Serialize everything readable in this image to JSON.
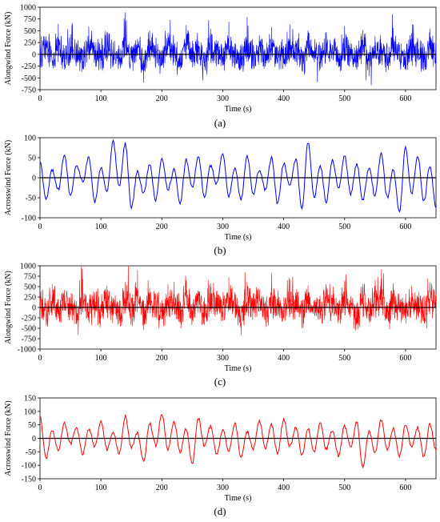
{
  "chart_data": [
    {
      "type": "line",
      "panel_label": "(a)",
      "xlabel": "Time (s)",
      "ylabel": "Alongwind Force (kN)",
      "xlim": [
        0,
        650
      ],
      "ylim": [
        -750,
        1000
      ],
      "xticks": [
        0,
        100,
        200,
        300,
        400,
        500,
        600
      ],
      "yticks": [
        -750,
        -500,
        -250,
        0,
        250,
        500,
        750,
        1000
      ],
      "grid": false,
      "color": "#0000ff",
      "series": [
        {
          "x": [
            0,
            10,
            20,
            30,
            40,
            50,
            60,
            70,
            80,
            90,
            100,
            110,
            120,
            130,
            140,
            150,
            160,
            170,
            180,
            190,
            200,
            210,
            220,
            230,
            240,
            250,
            260,
            270,
            280,
            290,
            300,
            310,
            320,
            330,
            340,
            350,
            360,
            370,
            380,
            390,
            400,
            410,
            420,
            430,
            440,
            450,
            460,
            470,
            480,
            490,
            500,
            510,
            520,
            530,
            540,
            550,
            560,
            570,
            580,
            590,
            600,
            610,
            620,
            630,
            640,
            650
          ],
          "values": [
            120,
            380,
            -180,
            650,
            -250,
            420,
            140,
            -310,
            590,
            80,
            -150,
            480,
            260,
            -200,
            700,
            -90,
            330,
            -600,
            510,
            110,
            -220,
            460,
            190,
            -330,
            620,
            -40,
            280,
            -260,
            540,
            150,
            -170,
            690,
            230,
            -300,
            790,
            -60,
            410,
            -240,
            580,
            120,
            -190,
            640,
            260,
            -350,
            510,
            70,
            -210,
            470,
            200,
            -280,
            600,
            90,
            -330,
            520,
            -460,
            380,
            160,
            -240,
            560,
            40,
            -190,
            450,
            280,
            -350,
            540,
            100
          ]
        }
      ]
    },
    {
      "type": "line",
      "panel_label": "(b)",
      "xlabel": "Time (s)",
      "ylabel": "Acrosswind Force (kN)",
      "xlim": [
        0,
        650
      ],
      "ylim": [
        -100,
        100
      ],
      "xticks": [
        0,
        100,
        200,
        300,
        400,
        500,
        600
      ],
      "yticks": [
        -100,
        -50,
        0,
        50,
        100
      ],
      "grid": false,
      "color": "#0000ff",
      "series": [
        {
          "x": [
            0,
            10,
            20,
            30,
            40,
            50,
            60,
            70,
            80,
            90,
            100,
            110,
            120,
            130,
            140,
            150,
            160,
            170,
            180,
            190,
            200,
            210,
            220,
            230,
            240,
            250,
            260,
            270,
            280,
            290,
            300,
            310,
            320,
            330,
            340,
            350,
            360,
            370,
            380,
            390,
            400,
            410,
            420,
            430,
            440,
            450,
            460,
            470,
            480,
            490,
            500,
            510,
            520,
            530,
            540,
            550,
            560,
            570,
            580,
            590,
            600,
            610,
            620,
            630,
            640,
            650
          ],
          "values": [
            40,
            -55,
            20,
            -30,
            55,
            -45,
            30,
            -10,
            50,
            -60,
            25,
            -35,
            90,
            -20,
            85,
            -75,
            15,
            -40,
            35,
            -55,
            50,
            -30,
            20,
            -65,
            45,
            -25,
            55,
            -50,
            30,
            -15,
            60,
            -45,
            25,
            -55,
            55,
            -40,
            20,
            -30,
            50,
            -65,
            35,
            -20,
            45,
            -80,
            88,
            -50,
            30,
            -60,
            45,
            -25,
            55,
            -40,
            35,
            -55,
            25,
            -45,
            60,
            -50,
            20,
            -85,
            75,
            -40,
            55,
            -60,
            30,
            -75
          ]
        }
      ]
    },
    {
      "type": "line",
      "panel_label": "(c)",
      "xlabel": "Time (s)",
      "ylabel": "Alongwind Force (kN)",
      "xlim": [
        0,
        650
      ],
      "ylim": [
        -1000,
        1000
      ],
      "xticks": [
        0,
        100,
        200,
        300,
        400,
        500,
        600
      ],
      "yticks": [
        -1000,
        -750,
        -500,
        -250,
        0,
        250,
        500,
        750,
        1000
      ],
      "grid": false,
      "color": "#ff0000",
      "series": [
        {
          "x": [
            0,
            10,
            20,
            30,
            40,
            50,
            60,
            70,
            80,
            90,
            100,
            110,
            120,
            130,
            140,
            150,
            160,
            170,
            180,
            190,
            200,
            210,
            220,
            230,
            240,
            250,
            260,
            270,
            280,
            290,
            300,
            310,
            320,
            330,
            340,
            350,
            360,
            370,
            380,
            390,
            400,
            410,
            420,
            430,
            440,
            450,
            460,
            470,
            480,
            490,
            500,
            510,
            520,
            530,
            540,
            550,
            560,
            570,
            580,
            590,
            600,
            610,
            620,
            630,
            640,
            650
          ],
          "values": [
            150,
            -320,
            560,
            -180,
            420,
            90,
            -400,
            680,
            -120,
            350,
            -260,
            520,
            200,
            -310,
            610,
            -150,
            900,
            -540,
            470,
            130,
            -280,
            560,
            240,
            -350,
            650,
            -80,
            310,
            -420,
            580,
            160,
            -230,
            720,
            270,
            -660,
            610,
            -90,
            430,
            -310,
            560,
            140,
            -250,
            670,
            220,
            -380,
            530,
            60,
            -270,
            490,
            230,
            -320,
            640,
            110,
            -370,
            560,
            -200,
            410,
            690,
            -280,
            580,
            70,
            -240,
            510,
            260,
            -330,
            600,
            120
          ]
        }
      ]
    },
    {
      "type": "line",
      "panel_label": "(d)",
      "xlabel": "Time (s)",
      "ylabel": "Acrosswind Force (kN)",
      "xlim": [
        0,
        650
      ],
      "ylim": [
        -150,
        150
      ],
      "xticks": [
        0,
        100,
        200,
        300,
        400,
        500,
        600
      ],
      "yticks": [
        -150,
        -100,
        -50,
        0,
        50,
        100,
        150
      ],
      "grid": false,
      "color": "#ff0000",
      "series": [
        {
          "x": [
            0,
            10,
            20,
            30,
            40,
            50,
            60,
            70,
            80,
            90,
            100,
            110,
            120,
            130,
            140,
            150,
            160,
            170,
            180,
            190,
            200,
            210,
            220,
            230,
            240,
            250,
            260,
            270,
            280,
            290,
            300,
            310,
            320,
            330,
            340,
            350,
            360,
            370,
            380,
            390,
            400,
            410,
            420,
            430,
            440,
            450,
            460,
            470,
            480,
            490,
            500,
            510,
            520,
            530,
            540,
            550,
            560,
            570,
            580,
            590,
            600,
            610,
            620,
            630,
            640,
            650
          ],
          "values": [
            80,
            -75,
            30,
            -45,
            55,
            -20,
            40,
            -60,
            35,
            -30,
            65,
            -40,
            25,
            -55,
            80,
            -35,
            20,
            -85,
            55,
            -25,
            90,
            -40,
            60,
            -50,
            35,
            -95,
            75,
            -30,
            45,
            -60,
            30,
            -45,
            55,
            -70,
            25,
            -40,
            65,
            -35,
            50,
            -55,
            70,
            -30,
            40,
            -60,
            35,
            -50,
            55,
            -40,
            30,
            -65,
            45,
            -35,
            60,
            -110,
            25,
            -55,
            70,
            -40,
            35,
            -65,
            50,
            -30,
            40,
            -70,
            55,
            -45
          ]
        }
      ]
    }
  ]
}
